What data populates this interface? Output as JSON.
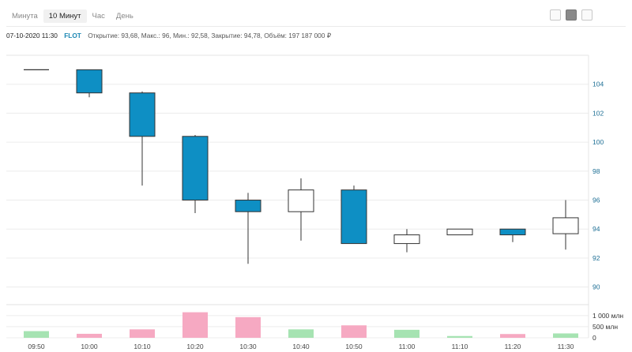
{
  "tabs": [
    {
      "label": "Минута",
      "active": false
    },
    {
      "label": "10 Минут",
      "active": true
    },
    {
      "label": "Час",
      "active": false
    },
    {
      "label": "День",
      "active": false
    }
  ],
  "tools": [
    {
      "icon": "line-chart-icon",
      "active": false
    },
    {
      "icon": "candlestick-chart-icon",
      "active": true
    },
    {
      "icon": "bar-chart-icon",
      "active": false
    }
  ],
  "info": {
    "datetime": "07-10-2020 11:30",
    "ticker": "FLOT",
    "stats": "Открытие: 93,68, Макс.: 96, Мин.: 92,58, Закрытие: 94,78, Объём: 197 187 000 ₽"
  },
  "colors": {
    "down": "#0e8fc4",
    "up": "#ffffff",
    "vol_down": "#f6a9c2",
    "vol_up": "#a6e3b2",
    "grid": "#ececec",
    "axis_text": "#1e6f95"
  },
  "chart_data": {
    "type": "candlestick",
    "x": [
      "09:50",
      "10:00",
      "10:10",
      "10:20",
      "10:30",
      "10:40",
      "10:50",
      "11:00",
      "11:10",
      "11:20",
      "11:30"
    ],
    "candles": [
      {
        "time": "09:50",
        "open": 105.0,
        "high": 105.0,
        "low": 105.0,
        "close": 105.0
      },
      {
        "time": "10:00",
        "open": 105.0,
        "high": 105.0,
        "low": 103.1,
        "close": 103.4
      },
      {
        "time": "10:10",
        "open": 103.4,
        "high": 103.5,
        "low": 97.0,
        "close": 100.4
      },
      {
        "time": "10:20",
        "open": 100.4,
        "high": 100.5,
        "low": 95.1,
        "close": 96.0
      },
      {
        "time": "10:30",
        "open": 96.0,
        "high": 96.5,
        "low": 91.6,
        "close": 95.2
      },
      {
        "time": "10:40",
        "open": 95.2,
        "high": 97.5,
        "low": 93.2,
        "close": 96.7
      },
      {
        "time": "10:50",
        "open": 96.7,
        "high": 97.0,
        "low": 93.0,
        "close": 93.0
      },
      {
        "time": "11:00",
        "open": 93.0,
        "high": 94.0,
        "low": 92.4,
        "close": 93.6
      },
      {
        "time": "11:10",
        "open": 93.6,
        "high": 94.0,
        "low": 93.6,
        "close": 94.0
      },
      {
        "time": "11:20",
        "open": 94.0,
        "high": 94.0,
        "low": 93.1,
        "close": 93.6
      },
      {
        "time": "11:30",
        "open": 93.68,
        "high": 96.0,
        "low": 92.58,
        "close": 94.78
      }
    ],
    "volume": [
      300,
      180,
      380,
      1150,
      930,
      380,
      560,
      360,
      80,
      170,
      197
    ],
    "price_ylim": [
      89,
      106
    ],
    "price_ticks": [
      104,
      102,
      100,
      98,
      96,
      94,
      92,
      90
    ],
    "volume_ylim": [
      0,
      1350
    ],
    "volume_ticks": [
      {
        "value": 1000,
        "label": "1 000 млн"
      },
      {
        "value": 500,
        "label": "500 млн"
      },
      {
        "value": 0,
        "label": "0"
      }
    ],
    "grid": true
  }
}
